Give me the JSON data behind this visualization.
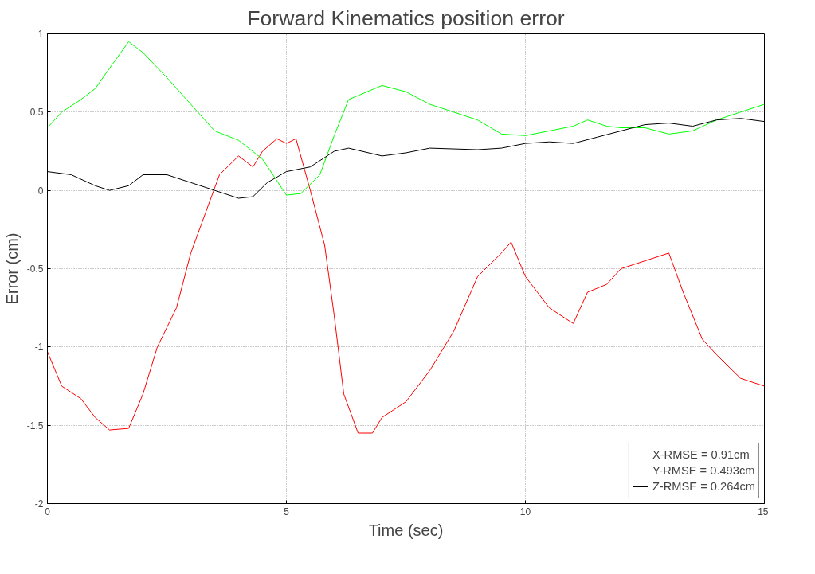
{
  "chart_data": {
    "type": "line",
    "title": "Forward Kinematics position error",
    "xlabel": "Time (sec)",
    "ylabel": "Error (cm)",
    "xlim": [
      0,
      15
    ],
    "ylim": [
      -2,
      1
    ],
    "xticks": [
      0,
      5,
      10,
      15
    ],
    "yticks": [
      -2,
      -1.5,
      -1,
      -0.5,
      0,
      0.5,
      1
    ],
    "grid": true,
    "legend": "bottom right",
    "line_style": "solid",
    "x": [
      0,
      0.3,
      0.7,
      1.0,
      1.3,
      1.7,
      2.0,
      2.3,
      2.7,
      3.0,
      3.3,
      3.6,
      4.0,
      4.3,
      4.5,
      4.8,
      5.0,
      5.2,
      5.5,
      5.8,
      6.0,
      6.2,
      6.5,
      6.8,
      7.0,
      7.5,
      8.0,
      8.5,
      9.0,
      9.5,
      9.7,
      10.0,
      10.5,
      11.0,
      11.3,
      11.7,
      12.0,
      12.5,
      13.0,
      13.3,
      13.7,
      14.0,
      14.5,
      15
    ],
    "series": [
      {
        "name": "X-RMSE = 0.91cm",
        "color": "#ff0000",
        "values": [
          -1.03,
          -1.25,
          -1.33,
          -1.45,
          -1.53,
          -1.52,
          -1.3,
          -1.0,
          -0.75,
          -0.4,
          -0.15,
          0.1,
          0.22,
          0.15,
          0.25,
          0.33,
          0.3,
          0.33,
          0.0,
          -0.35,
          -0.8,
          -1.3,
          -1.55,
          -1.55,
          -1.45,
          -1.35,
          -1.15,
          -0.9,
          -0.55,
          -0.4,
          -0.33,
          -0.55,
          -0.75,
          -0.85,
          -0.65,
          -0.6,
          -0.5,
          -0.45,
          -0.4,
          -0.65,
          -0.95,
          -1.05,
          -1.2,
          -1.25
        ]
      },
      {
        "name": "Y-RMSE = 0.493cm",
        "color": "#00ff00",
        "x": [
          0,
          0.3,
          0.7,
          1.0,
          1.3,
          1.7,
          2.0,
          2.5,
          3.0,
          3.5,
          4.0,
          4.5,
          5.0,
          5.3,
          5.7,
          6.0,
          6.3,
          7.0,
          7.5,
          8.0,
          8.5,
          9.0,
          9.5,
          10.0,
          10.5,
          11.0,
          11.3,
          11.7,
          12.0,
          12.5,
          13.0,
          13.5,
          14.0,
          14.5,
          15
        ],
        "values": [
          0.4,
          0.5,
          0.58,
          0.65,
          0.78,
          0.95,
          0.88,
          0.72,
          0.55,
          0.38,
          0.32,
          0.2,
          -0.03,
          -0.02,
          0.1,
          0.35,
          0.58,
          0.67,
          0.63,
          0.55,
          0.5,
          0.45,
          0.36,
          0.35,
          0.38,
          0.41,
          0.45,
          0.41,
          0.4,
          0.4,
          0.36,
          0.38,
          0.45,
          0.5,
          0.55
        ]
      },
      {
        "name": "Z-RMSE = 0.264cm",
        "color": "#000000",
        "x": [
          0,
          0.5,
          1.0,
          1.3,
          1.7,
          2.0,
          2.5,
          3.0,
          3.5,
          4.0,
          4.3,
          4.6,
          5.0,
          5.5,
          6.0,
          6.3,
          7.0,
          7.5,
          8.0,
          9.0,
          9.5,
          10.0,
          10.5,
          11.0,
          11.5,
          12.0,
          12.5,
          13.0,
          13.5,
          14.0,
          14.5,
          15.0
        ],
        "values": [
          0.12,
          0.1,
          0.03,
          0.0,
          0.03,
          0.1,
          0.1,
          0.05,
          0.0,
          -0.05,
          -0.04,
          0.05,
          0.12,
          0.15,
          0.25,
          0.27,
          0.22,
          0.24,
          0.27,
          0.26,
          0.27,
          0.3,
          0.31,
          0.3,
          0.34,
          0.38,
          0.42,
          0.43,
          0.41,
          0.45,
          0.46,
          0.44
        ]
      }
    ]
  }
}
